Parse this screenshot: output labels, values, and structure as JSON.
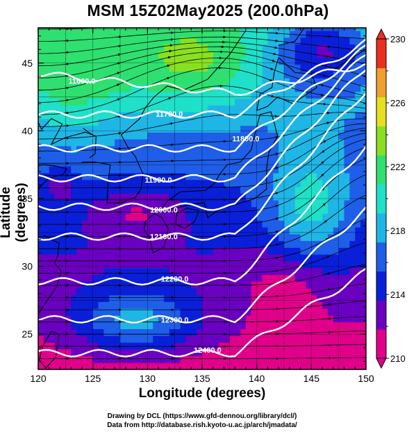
{
  "title": "MSM 15Z02May2025 (200.0hPa)",
  "x_axis": {
    "label": "Longitude (degrees)",
    "range": [
      120,
      150
    ],
    "ticks": [
      {
        "value": 120,
        "label": "120"
      },
      {
        "value": 125,
        "label": "125"
      },
      {
        "value": 130,
        "label": "130"
      },
      {
        "value": 135,
        "label": "135"
      },
      {
        "value": 140,
        "label": "140"
      },
      {
        "value": 145,
        "label": "145"
      },
      {
        "value": 150,
        "label": "150"
      }
    ]
  },
  "y_axis": {
    "label": "Latitude  (degrees)",
    "range": [
      22.4,
      47.6
    ],
    "ticks": [
      {
        "value": 25,
        "label": "25"
      },
      {
        "value": 30,
        "label": "30"
      },
      {
        "value": 35,
        "label": "35"
      },
      {
        "value": 40,
        "label": "40"
      },
      {
        "value": 45,
        "label": "45"
      }
    ]
  },
  "colorbar": {
    "min": 210,
    "max": 230,
    "labels": [
      {
        "value": 230,
        "label": "230"
      },
      {
        "value": 226,
        "label": "226"
      },
      {
        "value": 222,
        "label": "222"
      },
      {
        "value": 218,
        "label": "218"
      },
      {
        "value": 214,
        "label": "214"
      },
      {
        "value": 210,
        "label": "210"
      }
    ],
    "colors": [
      "#e0008a",
      "#6a00c0",
      "#0a1fd8",
      "#1e5ee8",
      "#1fb6e6",
      "#1fe0c8",
      "#2ee070",
      "#8ae020",
      "#e6e020",
      "#f0a030",
      "#e83020"
    ]
  },
  "contours": [
    {
      "label": "11600.0",
      "lat": 44.2
    },
    {
      "label": "11700.0",
      "lat": 41.2
    },
    {
      "label": "11800.0",
      "lat": 38.7
    },
    {
      "label": "11900.0",
      "lat": 36.5
    },
    {
      "label": "12000.0",
      "lat": 34.4
    },
    {
      "label": "12100.0",
      "lat": 32.2
    },
    {
      "label": "12200.0",
      "lat": 28.9
    },
    {
      "label": "12300.0",
      "lat": 26.1
    },
    {
      "label": "12400.0",
      "lat": 23.6
    }
  ],
  "credits": {
    "line1": "Drawing by DCL (https://www.gfd-dennou.org/library/dcl/)",
    "line2": "Data from http://database.rish.kyoto-u.ac.jp/arch/jmadata/"
  }
}
